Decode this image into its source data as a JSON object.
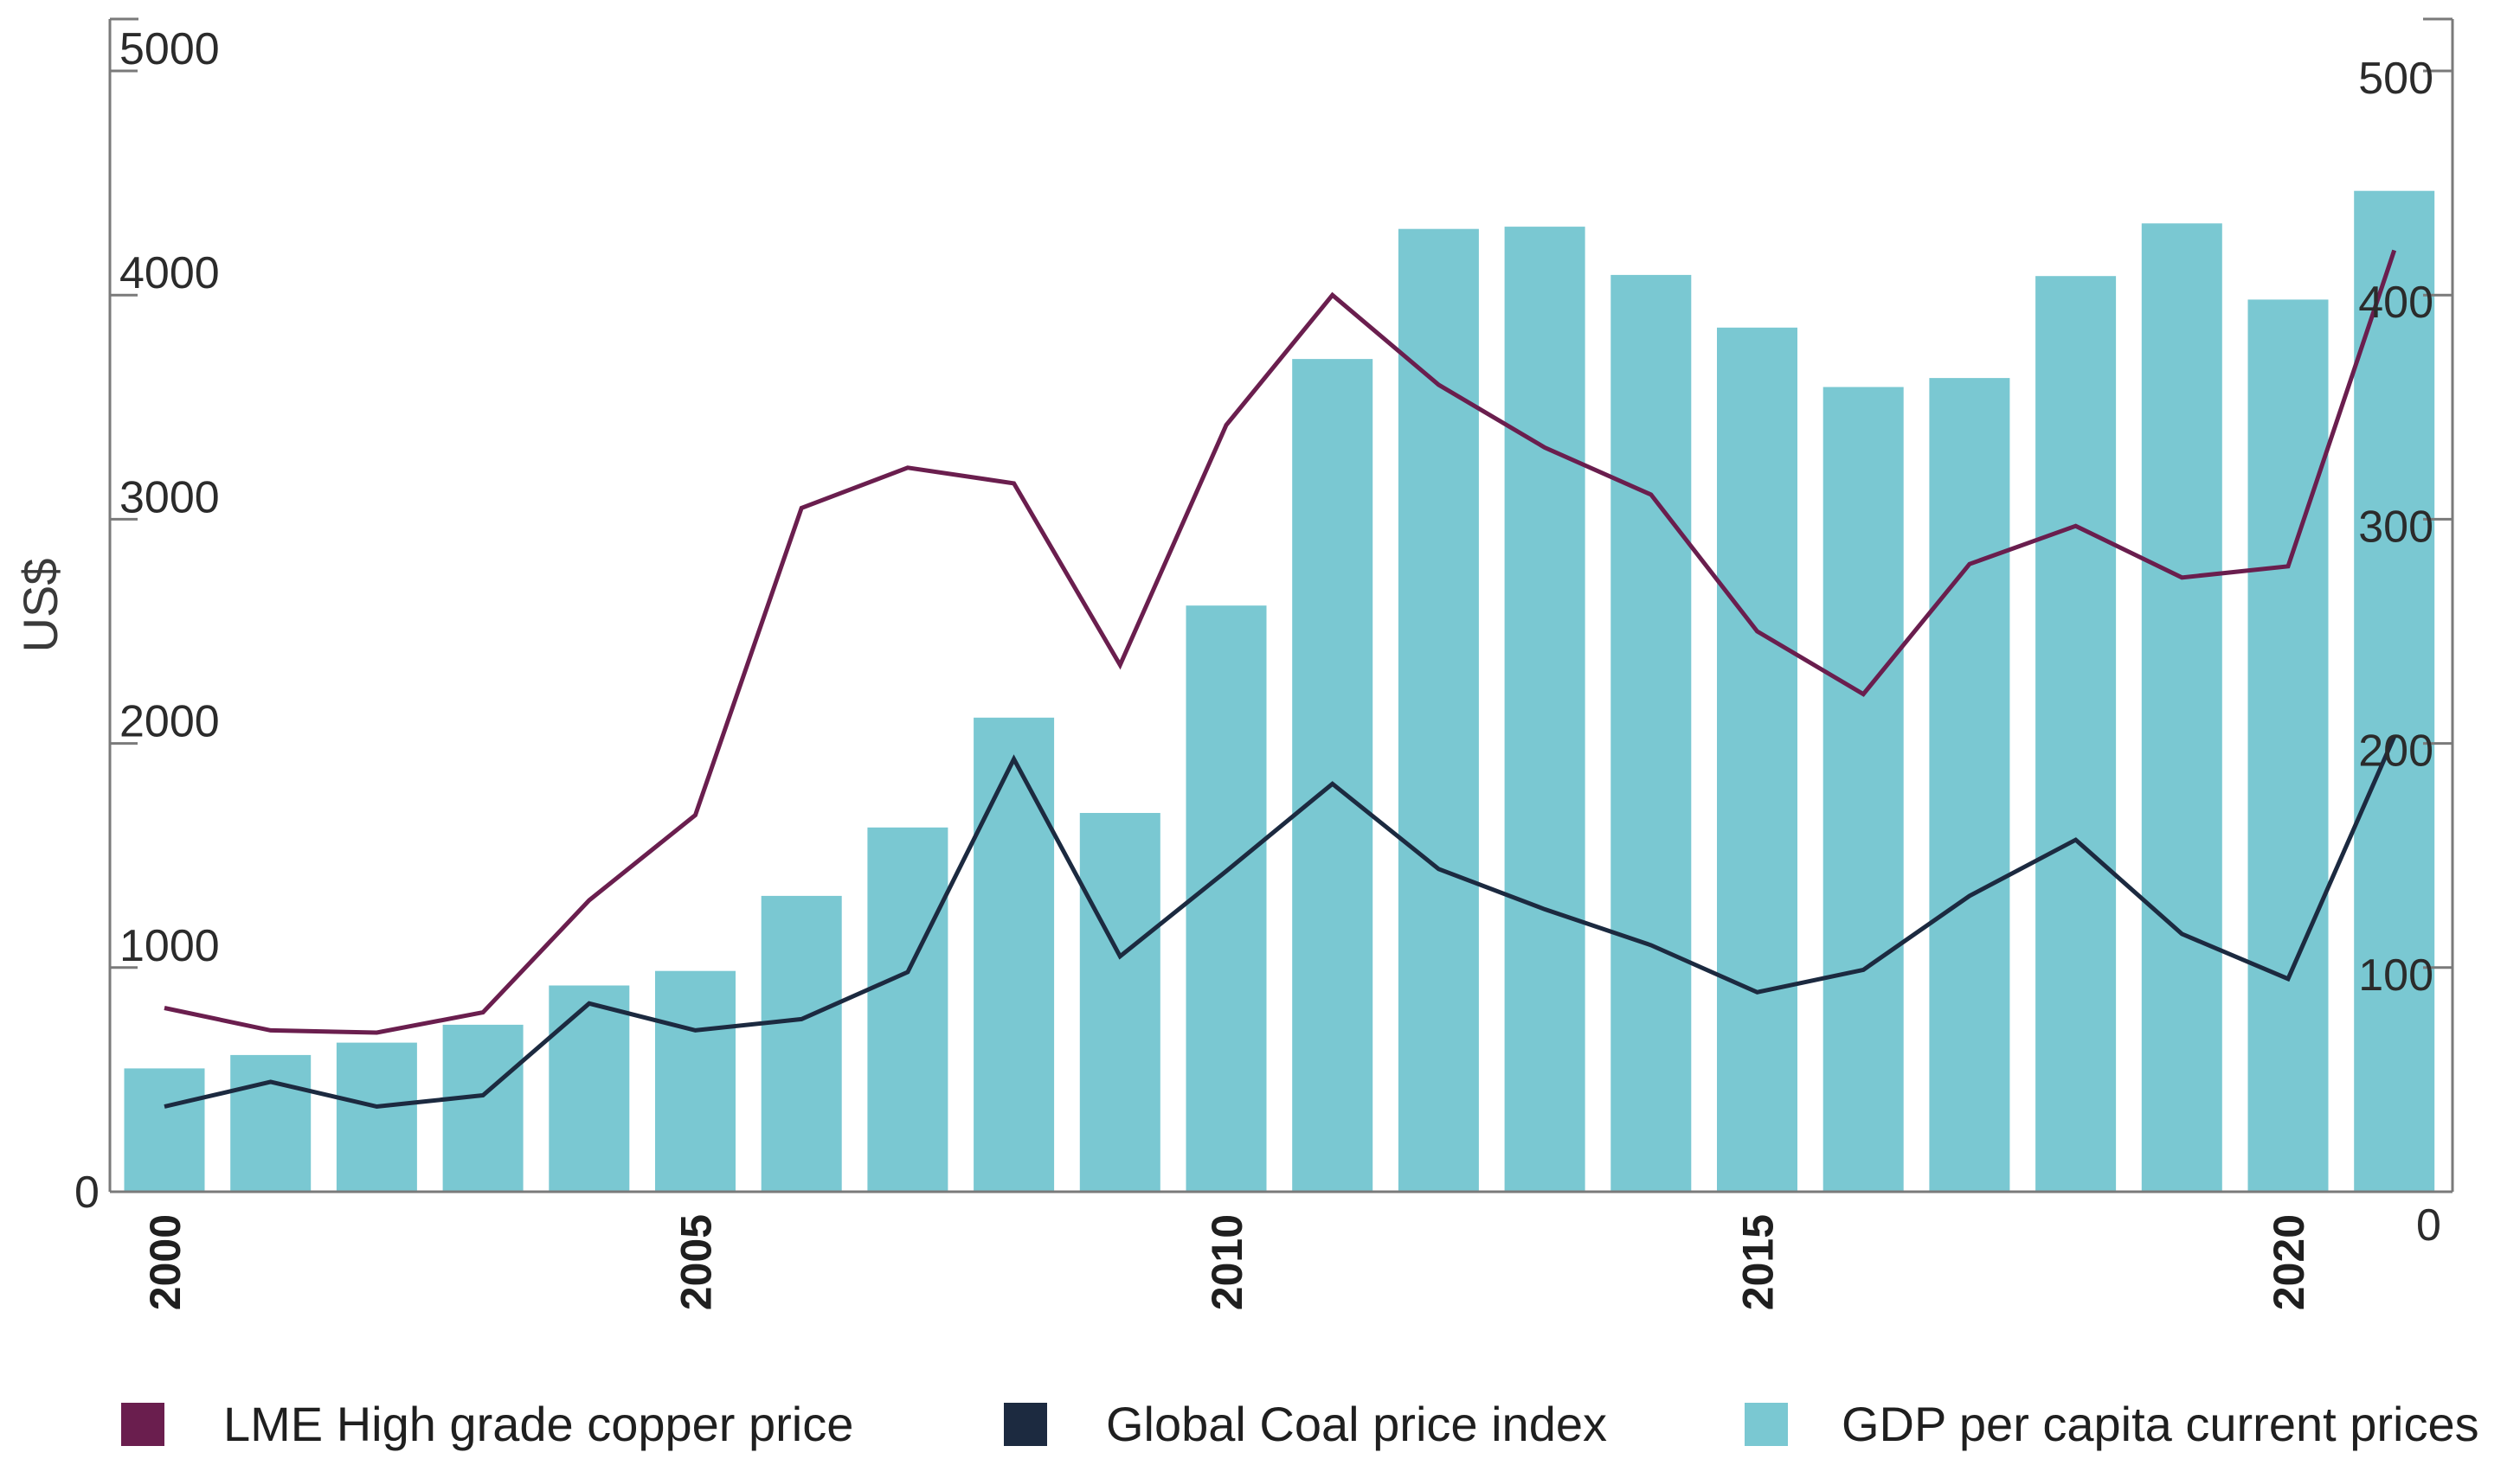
{
  "chart_data": {
    "type": "bar",
    "title": "",
    "xlabel": "",
    "ylabel": "US$",
    "x": [
      2000,
      2001,
      2002,
      2003,
      2004,
      2005,
      2006,
      2007,
      2008,
      2009,
      2010,
      2011,
      2012,
      2013,
      2014,
      2015,
      2016,
      2017,
      2018,
      2019,
      2020,
      2021
    ],
    "x_tick_labels": [
      "2000",
      "2005",
      "2010",
      "2015",
      "2020"
    ],
    "x_ticks": [
      2000,
      2005,
      2010,
      2015,
      2020
    ],
    "left_axis": {
      "ylim": [
        0,
        5000
      ],
      "ticks": [
        0,
        1000,
        2000,
        3000,
        4000,
        5000
      ],
      "tick_labels": [
        "0",
        "1000",
        "2000",
        "3000",
        "4000",
        "5000"
      ]
    },
    "right_axis": {
      "ylim": [
        0,
        500
      ],
      "ticks": [
        0,
        100,
        200,
        300,
        400,
        500
      ],
      "tick_labels": [
        "0",
        "100",
        "200",
        "300",
        "400",
        "500"
      ]
    },
    "grid": false,
    "legend_position": "bottom",
    "series": [
      {
        "name": "GDP per capita current prices",
        "type": "bar",
        "axis": "left",
        "color": "#7AC8D2",
        "values": [
          550,
          610,
          665,
          745,
          920,
          985,
          1320,
          1625,
          2115,
          1690,
          2615,
          3715,
          4295,
          4305,
          4090,
          3855,
          3590,
          3630,
          4085,
          4320,
          3980,
          4465
        ]
      },
      {
        "name": "LME High grade copper price",
        "type": "line",
        "axis": "right",
        "color": "#6A1E4E",
        "values": [
          82,
          72,
          71,
          80,
          130,
          168,
          305,
          323,
          316,
          235,
          342,
          400,
          360,
          332,
          311,
          250,
          222,
          280,
          297,
          274,
          279,
          420
        ]
      },
      {
        "name": "Global Coal price index",
        "type": "line",
        "axis": "right",
        "color": "#1C2A40",
        "values": [
          38,
          49,
          38,
          43,
          84,
          72,
          77,
          98,
          193,
          105,
          143,
          182,
          144,
          126,
          110,
          89,
          99,
          132,
          157,
          115,
          95,
          203
        ]
      }
    ],
    "legend": [
      {
        "label": "LME High grade copper price",
        "color": "#6A1E4E"
      },
      {
        "label": "Global Coal price index",
        "color": "#1C2A40"
      },
      {
        "label": "GDP per capita current prices",
        "color": "#7AC8D2"
      }
    ]
  }
}
